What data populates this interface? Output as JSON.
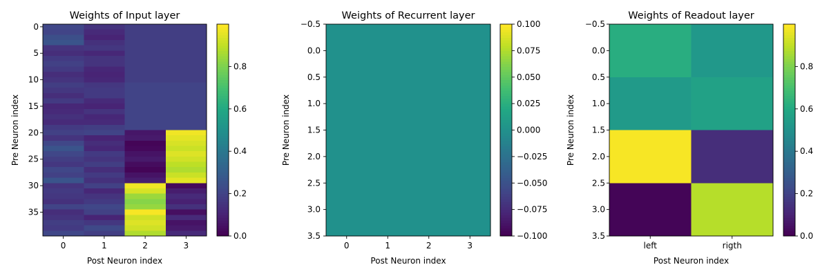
{
  "chart_data": [
    {
      "type": "heatmap",
      "title": "Weights of Input layer",
      "xlabel": "Post Neuron index",
      "ylabel": "Pre Neuron index",
      "xticks": [
        "0",
        "1",
        "2",
        "3"
      ],
      "yticks": [
        "0",
        "5",
        "10",
        "15",
        "20",
        "25",
        "30",
        "35"
      ],
      "xlim": [
        -0.5,
        3.5
      ],
      "ylim": [
        39.5,
        -0.5
      ],
      "colorbar": {
        "min": 0,
        "max": 1.0,
        "ticks": [
          "0.0",
          "0.2",
          "0.4",
          "0.6",
          "0.8"
        ]
      },
      "colormap": "viridis",
      "values": [
        [
          0.21,
          0.15,
          0.18,
          0.18
        ],
        [
          0.2,
          0.12,
          0.18,
          0.18
        ],
        [
          0.24,
          0.1,
          0.18,
          0.18
        ],
        [
          0.26,
          0.14,
          0.18,
          0.18
        ],
        [
          0.15,
          0.16,
          0.18,
          0.18
        ],
        [
          0.13,
          0.11,
          0.18,
          0.18
        ],
        [
          0.17,
          0.15,
          0.18,
          0.18
        ],
        [
          0.19,
          0.15,
          0.18,
          0.18
        ],
        [
          0.17,
          0.11,
          0.18,
          0.18
        ],
        [
          0.13,
          0.1,
          0.18,
          0.18
        ],
        [
          0.15,
          0.11,
          0.18,
          0.18
        ],
        [
          0.18,
          0.16,
          0.2,
          0.2
        ],
        [
          0.16,
          0.17,
          0.2,
          0.2
        ],
        [
          0.13,
          0.17,
          0.2,
          0.2
        ],
        [
          0.17,
          0.12,
          0.2,
          0.2
        ],
        [
          0.11,
          0.1,
          0.2,
          0.2
        ],
        [
          0.12,
          0.15,
          0.2,
          0.2
        ],
        [
          0.14,
          0.11,
          0.2,
          0.2
        ],
        [
          0.12,
          0.12,
          0.2,
          0.2
        ],
        [
          0.17,
          0.18,
          0.2,
          0.2
        ],
        [
          0.19,
          0.2,
          0.06,
          0.98
        ],
        [
          0.15,
          0.1,
          0.07,
          0.96
        ],
        [
          0.21,
          0.13,
          0.01,
          0.94
        ],
        [
          0.26,
          0.11,
          0.02,
          0.92
        ],
        [
          0.21,
          0.17,
          0.05,
          0.95
        ],
        [
          0.18,
          0.15,
          0.07,
          0.93
        ],
        [
          0.16,
          0.18,
          0.03,
          0.9
        ],
        [
          0.21,
          0.13,
          0.01,
          0.88
        ],
        [
          0.19,
          0.17,
          0.05,
          0.92
        ],
        [
          0.26,
          0.14,
          0.08,
          0.96
        ],
        [
          0.15,
          0.19,
          0.98,
          0.02
        ],
        [
          0.17,
          0.11,
          0.94,
          0.08
        ],
        [
          0.16,
          0.15,
          0.85,
          0.12
        ],
        [
          0.14,
          0.17,
          0.82,
          0.09
        ],
        [
          0.2,
          0.21,
          0.84,
          0.14
        ],
        [
          0.13,
          0.19,
          0.99,
          0.04
        ],
        [
          0.15,
          0.1,
          0.93,
          0.12
        ],
        [
          0.18,
          0.16,
          0.95,
          0.05
        ],
        [
          0.17,
          0.22,
          0.93,
          0.07
        ],
        [
          0.21,
          0.18,
          0.88,
          0.12
        ]
      ]
    },
    {
      "type": "heatmap",
      "title": "Weights of Recurrent layer",
      "xlabel": "Post Neuron index",
      "ylabel": "Pre Neuron index",
      "xticks": [
        "0",
        "1",
        "2",
        "3"
      ],
      "yticks": [
        "−0.5",
        "0.0",
        "0.5",
        "1.0",
        "1.5",
        "2.0",
        "2.5",
        "3.0",
        "3.5"
      ],
      "xlim": [
        -0.5,
        3.5
      ],
      "ylim": [
        3.5,
        -0.5
      ],
      "colorbar": {
        "min": -0.1,
        "max": 0.1,
        "ticks": [
          "−0.100",
          "−0.075",
          "−0.050",
          "−0.025",
          "0.000",
          "0.025",
          "0.050",
          "0.075",
          "0.100"
        ]
      },
      "colormap": "viridis",
      "values": [
        [
          0,
          0,
          0,
          0
        ],
        [
          0,
          0,
          0,
          0
        ],
        [
          0,
          0,
          0,
          0
        ],
        [
          0,
          0,
          0,
          0
        ]
      ]
    },
    {
      "type": "heatmap",
      "title": "Weights of Readout layer",
      "xlabel": "Post Neuron index",
      "ylabel": "Pre Neuron index",
      "xticks": [
        "left",
        "rigth"
      ],
      "yticks": [
        "−0.5",
        "0.0",
        "0.5",
        "1.0",
        "1.5",
        "2.0",
        "2.5",
        "3.0",
        "3.5"
      ],
      "xlim": [
        -0.5,
        1.5
      ],
      "ylim": [
        3.5,
        -0.5
      ],
      "colorbar": {
        "min": 0,
        "max": 1.0,
        "ticks": [
          "0.0",
          "0.2",
          "0.4",
          "0.6",
          "0.8"
        ]
      },
      "colormap": "viridis",
      "values": [
        [
          0.62,
          0.53
        ],
        [
          0.54,
          0.57
        ],
        [
          0.99,
          0.13
        ],
        [
          0.01,
          0.89
        ]
      ]
    }
  ]
}
